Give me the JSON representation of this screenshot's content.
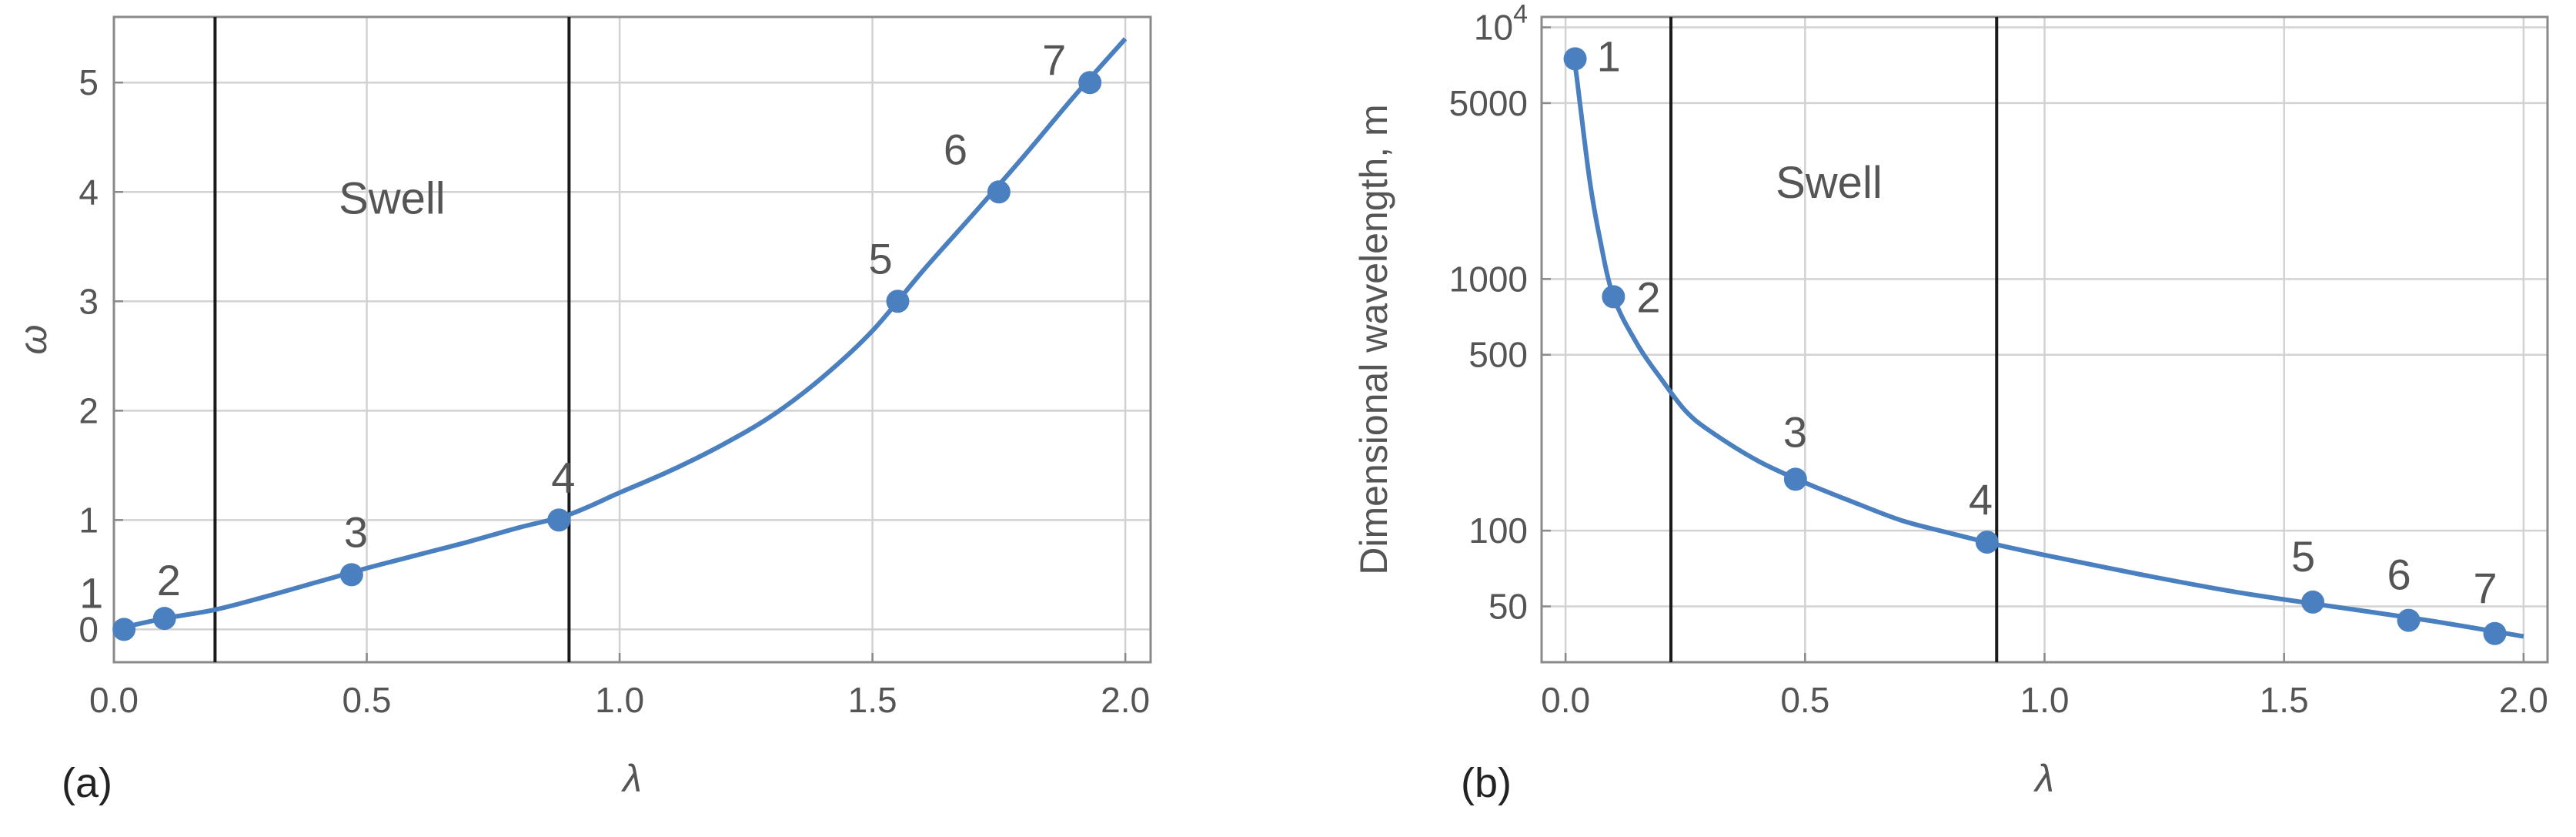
{
  "colors": {
    "series": "#4a80c0",
    "boundary": "#1a1a1a",
    "grid": "#d2d2d2",
    "text": "#555555"
  },
  "chart_data": [
    {
      "panel_label": "(a)",
      "type": "line",
      "xlabel": "λ",
      "ylabel": "ω",
      "xlim": [
        0,
        2.05
      ],
      "ylim": [
        -0.3,
        5.6
      ],
      "x_ticks": [
        "0.0",
        "0.5",
        "1.0",
        "1.5",
        "2.0"
      ],
      "y_ticks": [
        "0",
        "1",
        "2",
        "3",
        "4",
        "5"
      ],
      "y_tick_values": [
        0,
        1,
        2,
        3,
        4,
        5
      ],
      "grid": true,
      "y_scale": "linear",
      "vertical_lines": [
        0.2,
        0.9
      ],
      "region_label": "Swell",
      "region_label_at": [
        0.55,
        3.8
      ],
      "curve": {
        "x": [
          0.0,
          0.1,
          0.2,
          0.3,
          0.4,
          0.5,
          0.6,
          0.7,
          0.8,
          0.9,
          1.0,
          1.1,
          1.2,
          1.3,
          1.4,
          1.5,
          1.6,
          1.7,
          1.8,
          1.9,
          2.0
        ],
        "y": [
          0.0,
          0.1,
          0.18,
          0.3,
          0.43,
          0.56,
          0.68,
          0.8,
          0.93,
          1.05,
          1.25,
          1.45,
          1.68,
          1.95,
          2.3,
          2.73,
          3.28,
          3.8,
          4.33,
          4.88,
          5.4
        ]
      },
      "points": [
        {
          "label": "1",
          "x": 0.02,
          "y": 0.0
        },
        {
          "label": "2",
          "x": 0.1,
          "y": 0.1
        },
        {
          "label": "3",
          "x": 0.47,
          "y": 0.5
        },
        {
          "label": "4",
          "x": 0.88,
          "y": 1.0
        },
        {
          "label": "5",
          "x": 1.55,
          "y": 3.0
        },
        {
          "label": "6",
          "x": 1.75,
          "y": 4.0
        },
        {
          "label": "7",
          "x": 1.93,
          "y": 5.0
        }
      ]
    },
    {
      "panel_label": "(b)",
      "type": "line",
      "xlabel": "λ",
      "ylabel": "Dimensional  wavelength, m",
      "xlim": [
        -0.05,
        2.05
      ],
      "ylim": [
        30,
        11000
      ],
      "x_ticks": [
        "0.0",
        "0.5",
        "1.0",
        "1.5",
        "2.0"
      ],
      "y_ticks": [
        "10⁴",
        "5000",
        "1000",
        "500",
        "100",
        "50"
      ],
      "y_tick_values": [
        10000,
        5000,
        1000,
        500,
        100,
        50
      ],
      "grid": true,
      "y_scale": "log",
      "vertical_lines": [
        0.22,
        0.9
      ],
      "region_label": "Swell",
      "region_label_at": [
        0.55,
        2100
      ],
      "curve": {
        "x": [
          0.01,
          0.02,
          0.03,
          0.05,
          0.07,
          0.1,
          0.15,
          0.2,
          0.25,
          0.3,
          0.4,
          0.5,
          0.6,
          0.7,
          0.8,
          0.9,
          1.0,
          1.2,
          1.4,
          1.6,
          1.8,
          2.0
        ],
        "y": [
          8000,
          7000,
          5000,
          2500,
          1500,
          850,
          550,
          400,
          300,
          250,
          190,
          155,
          130,
          110,
          98,
          88,
          80,
          67,
          57,
          50,
          44,
          38
        ]
      },
      "points": [
        {
          "label": "1",
          "x": 0.02,
          "y": 7500
        },
        {
          "label": "2",
          "x": 0.1,
          "y": 850
        },
        {
          "label": "3",
          "x": 0.48,
          "y": 160
        },
        {
          "label": "4",
          "x": 0.88,
          "y": 90
        },
        {
          "label": "5",
          "x": 1.56,
          "y": 52
        },
        {
          "label": "6",
          "x": 1.76,
          "y": 44
        },
        {
          "label": "7",
          "x": 1.94,
          "y": 39
        }
      ]
    }
  ]
}
